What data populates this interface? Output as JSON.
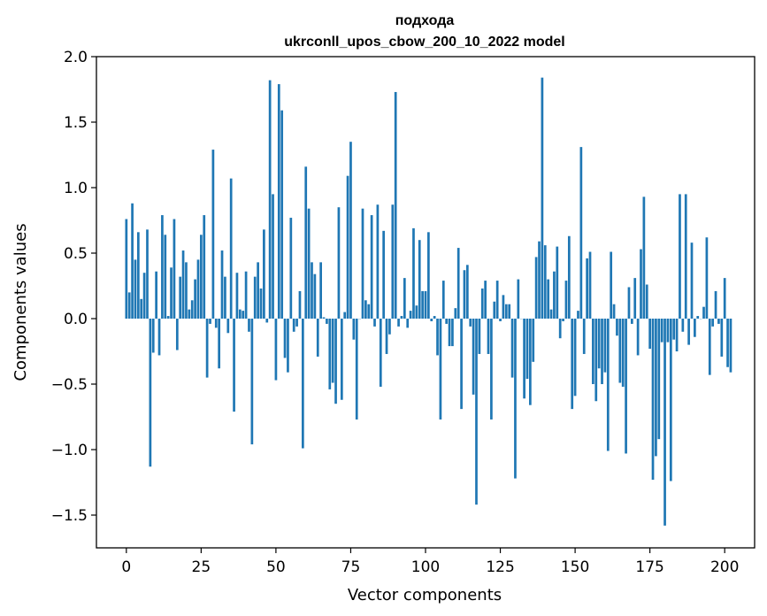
{
  "chart_data": {
    "type": "bar",
    "title_line1": "подхода",
    "title_line2": "ukrconll_upos_cbow_200_10_2022 model",
    "xlabel": "Vector components",
    "ylabel": "Components values",
    "xlim": [
      -10,
      210
    ],
    "ylim": [
      -1.75,
      2.0
    ],
    "x_ticks": [
      0,
      25,
      50,
      75,
      100,
      125,
      150,
      175,
      200
    ],
    "x_tick_labels": [
      "0",
      "25",
      "50",
      "75",
      "100",
      "125",
      "150",
      "175",
      "200"
    ],
    "y_ticks": [
      2.0,
      1.5,
      1.0,
      0.5,
      0.0,
      -0.5,
      -1.0,
      -1.5
    ],
    "y_tick_labels": [
      "2.0",
      "1.5",
      "1.0",
      "0.5",
      "0.0",
      "−0.5",
      "−1.0",
      "−1.5"
    ],
    "bar_color": "#1f77b4",
    "values": [
      0.76,
      0.2,
      0.88,
      0.45,
      0.66,
      0.15,
      0.35,
      0.68,
      -1.13,
      -0.26,
      0.36,
      -0.28,
      0.79,
      0.64,
      0.02,
      0.39,
      0.76,
      -0.24,
      0.32,
      0.52,
      0.43,
      0.07,
      0.14,
      0.3,
      0.45,
      0.64,
      0.79,
      -0.45,
      -0.04,
      1.29,
      -0.07,
      -0.38,
      0.52,
      0.32,
      -0.11,
      1.07,
      -0.71,
      0.35,
      0.07,
      0.06,
      0.36,
      -0.1,
      -0.96,
      0.32,
      0.43,
      0.23,
      0.68,
      -0.03,
      1.82,
      0.95,
      -0.47,
      1.79,
      1.59,
      -0.3,
      -0.41,
      0.77,
      -0.1,
      -0.06,
      0.21,
      -0.99,
      1.16,
      0.84,
      0.43,
      0.34,
      -0.29,
      0.43,
      0.01,
      -0.04,
      -0.54,
      -0.49,
      -0.65,
      0.85,
      -0.62,
      0.05,
      1.09,
      1.35,
      -0.16,
      -0.77,
      0.0,
      0.84,
      0.14,
      0.11,
      0.79,
      -0.06,
      0.87,
      -0.52,
      0.67,
      -0.27,
      -0.12,
      0.87,
      1.73,
      -0.06,
      0.02,
      0.31,
      -0.07,
      0.06,
      0.69,
      0.1,
      0.6,
      0.21,
      0.21,
      0.66,
      -0.02,
      0.02,
      -0.28,
      -0.77,
      0.29,
      -0.04,
      -0.21,
      -0.21,
      0.08,
      0.54,
      -0.69,
      0.37,
      0.41,
      -0.06,
      -0.58,
      -1.42,
      -0.27,
      0.23,
      0.29,
      -0.27,
      -0.77,
      0.13,
      0.29,
      -0.02,
      0.18,
      0.11,
      0.11,
      -0.45,
      -1.22,
      0.3,
      0.0,
      -0.61,
      -0.46,
      -0.66,
      -0.33,
      0.47,
      0.59,
      1.84,
      0.56,
      0.3,
      0.07,
      0.36,
      0.55,
      -0.15,
      -0.02,
      0.29,
      0.63,
      -0.69,
      -0.59,
      0.06,
      1.31,
      -0.27,
      0.46,
      0.51,
      -0.5,
      -0.63,
      -0.38,
      -0.5,
      -0.41,
      -1.01,
      0.51,
      0.11,
      -0.13,
      -0.49,
      -0.52,
      -1.03,
      0.24,
      -0.04,
      0.31,
      -0.28,
      0.53,
      0.93,
      0.26,
      -0.23,
      -1.23,
      -1.05,
      -0.92,
      -0.18,
      -1.58,
      -0.18,
      -1.24,
      -0.16,
      -0.25,
      0.95,
      -0.1,
      0.95,
      -0.2,
      0.58,
      -0.14,
      0.02,
      0.0,
      0.09,
      0.62,
      -0.43,
      -0.06,
      0.21,
      -0.04,
      -0.29,
      0.31,
      -0.37,
      -0.41
    ]
  }
}
